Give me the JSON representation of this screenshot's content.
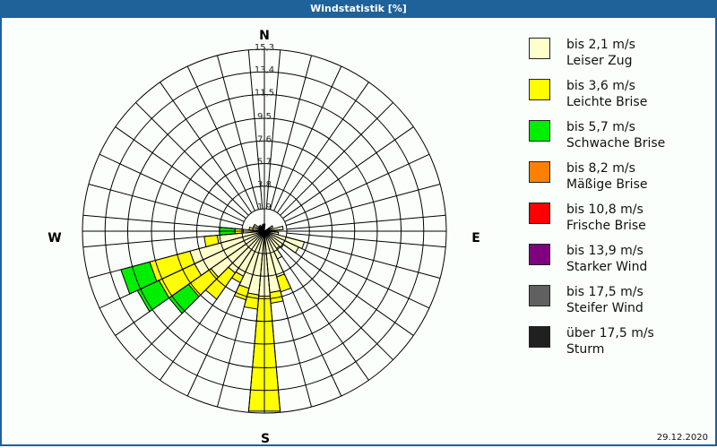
{
  "window": {
    "title": "Windstatistik [%]"
  },
  "footer": {
    "date": "29.12.2020"
  },
  "compass": {
    "n": "N",
    "e": "E",
    "s": "S",
    "w": "W"
  },
  "legend": [
    {
      "line1": "bis 2,1 m/s",
      "line2": "Leiser Zug",
      "color": "#ffffcc"
    },
    {
      "line1": "bis 3,6 m/s",
      "line2": "Leichte Brise",
      "color": "#ffff00"
    },
    {
      "line1": "bis 5,7 m/s",
      "line2": "Schwache Brise",
      "color": "#00ee00"
    },
    {
      "line1": "bis 8,2 m/s",
      "line2": "Mäßige Brise",
      "color": "#ff8000"
    },
    {
      "line1": "bis 10,8 m/s",
      "line2": "Frische Brise",
      "color": "#ff0000"
    },
    {
      "line1": "bis 13,9 m/s",
      "line2": "Starker Wind",
      "color": "#800080"
    },
    {
      "line1": "bis 17,5 m/s",
      "line2": "Steifer Wind",
      "color": "#606060"
    },
    {
      "line1": "über 17,5 m/s",
      "line2": "Sturm",
      "color": "#202020"
    }
  ],
  "chart_data": {
    "type": "polar-bar (wind rose)",
    "title": "Windstatistik [%]",
    "radial_ticks": [
      "1,9",
      "3,8",
      "5,7",
      "7,6",
      "9,5",
      "11,5",
      "13,4",
      "15,3"
    ],
    "radial_max": 15.3,
    "sector_width_deg": 10,
    "directions_deg": "clockwise from North",
    "series_names": [
      "bis 2,1 m/s",
      "bis 3,6 m/s",
      "bis 5,7 m/s"
    ],
    "sectors": [
      {
        "dir": 0,
        "cum": [
          0.6
        ]
      },
      {
        "dir": 60,
        "cum": [
          0.8
        ]
      },
      {
        "dir": 80,
        "cum": [
          1.6
        ]
      },
      {
        "dir": 90,
        "cum": [
          0.8
        ]
      },
      {
        "dir": 100,
        "cum": [
          1.2
        ]
      },
      {
        "dir": 110,
        "cum": [
          3.5
        ]
      },
      {
        "dir": 120,
        "cum": [
          3.2
        ]
      },
      {
        "dir": 130,
        "cum": [
          2.0
        ]
      },
      {
        "dir": 140,
        "cum": [
          1.8
        ]
      },
      {
        "dir": 150,
        "cum": [
          2.6
        ]
      },
      {
        "dir": 160,
        "cum": [
          4.0,
          5.3
        ]
      },
      {
        "dir": 170,
        "cum": [
          5.2,
          6.1
        ]
      },
      {
        "dir": 180,
        "cum": [
          5.5,
          15.2
        ]
      },
      {
        "dir": 190,
        "cum": [
          5.4,
          6.6
        ]
      },
      {
        "dir": 200,
        "cum": [
          5.0,
          6.0
        ]
      },
      {
        "dir": 210,
        "cum": [
          4.2,
          4.8
        ]
      },
      {
        "dir": 220,
        "cum": [
          4.3,
          7.0
        ]
      },
      {
        "dir": 230,
        "cum": [
          5.5,
          7.8,
          9.8
        ]
      },
      {
        "dir": 240,
        "cum": [
          6.5,
          9.8,
          11.8
        ]
      },
      {
        "dir": 250,
        "cum": [
          6.5,
          10.0,
          12.5
        ]
      },
      {
        "dir": 260,
        "cum": [
          4.0,
          5.1
        ]
      },
      {
        "dir": 270,
        "cum": [
          1.8,
          2.5,
          3.8
        ]
      },
      {
        "dir": 280,
        "cum": [
          1.0,
          1.3
        ]
      },
      {
        "dir": 290,
        "cum": [
          1.0
        ]
      },
      {
        "dir": 300,
        "cum": [
          1.0
        ]
      },
      {
        "dir": 310,
        "cum": [
          0.6
        ]
      },
      {
        "dir": 320,
        "cum": [
          0.6
        ]
      },
      {
        "dir": 330,
        "cum": [
          0.5
        ]
      },
      {
        "dir": 340,
        "cum": [
          0.5
        ]
      },
      {
        "dir": 350,
        "cum": [
          0.6
        ]
      }
    ],
    "legend_position": "right",
    "grid": true
  }
}
